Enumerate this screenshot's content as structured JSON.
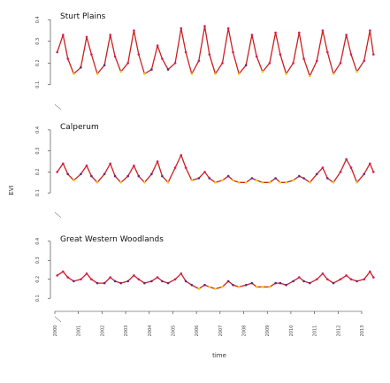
{
  "colors": {
    "line": "#cc1f1f",
    "points_primary": "#d81b60",
    "points_low": "#e6d400",
    "points_mid": "#5b2a86",
    "axis": "#333333"
  },
  "chart_data": {
    "type": "line",
    "ylabel": "EVI",
    "xlabel": "time",
    "x_ticks": [
      "2000",
      "2001",
      "2002",
      "2003",
      "2004",
      "2005",
      "2006",
      "2007",
      "2008",
      "2009",
      "2010",
      "2011",
      "2012",
      "2013"
    ],
    "xlim": [
      2000,
      2013.6
    ],
    "y_ticks": [
      "0.1",
      "0.2",
      "0.3",
      "0.4"
    ],
    "ylim": [
      0.05,
      0.45
    ],
    "panels": [
      {
        "name": "Sturt Plains",
        "x": [
          2000.1,
          2000.35,
          2000.55,
          2000.8,
          2001.1,
          2001.35,
          2001.55,
          2001.8,
          2002.1,
          2002.35,
          2002.55,
          2002.8,
          2003.1,
          2003.35,
          2003.55,
          2003.8,
          2004.1,
          2004.35,
          2004.55,
          2004.8,
          2005.1,
          2005.35,
          2005.55,
          2005.8,
          2006.1,
          2006.35,
          2006.55,
          2006.8,
          2007.1,
          2007.35,
          2007.55,
          2007.8,
          2008.1,
          2008.35,
          2008.55,
          2008.8,
          2009.1,
          2009.35,
          2009.55,
          2009.8,
          2010.1,
          2010.35,
          2010.55,
          2010.8,
          2011.1,
          2011.35,
          2011.55,
          2011.8,
          2012.1,
          2012.35,
          2012.55,
          2012.8,
          2013.1,
          2013.35,
          2013.5
        ],
        "y": [
          0.25,
          0.33,
          0.22,
          0.15,
          0.18,
          0.32,
          0.24,
          0.15,
          0.19,
          0.33,
          0.23,
          0.16,
          0.2,
          0.35,
          0.24,
          0.15,
          0.17,
          0.28,
          0.22,
          0.17,
          0.2,
          0.36,
          0.25,
          0.15,
          0.21,
          0.37,
          0.24,
          0.15,
          0.2,
          0.36,
          0.25,
          0.15,
          0.19,
          0.33,
          0.23,
          0.16,
          0.2,
          0.34,
          0.24,
          0.15,
          0.2,
          0.34,
          0.22,
          0.14,
          0.21,
          0.35,
          0.25,
          0.15,
          0.2,
          0.33,
          0.24,
          0.16,
          0.21,
          0.35,
          0.24
        ]
      },
      {
        "name": "Calperum",
        "x": [
          2000.1,
          2000.35,
          2000.55,
          2000.8,
          2001.1,
          2001.35,
          2001.55,
          2001.8,
          2002.1,
          2002.35,
          2002.55,
          2002.8,
          2003.1,
          2003.35,
          2003.55,
          2003.8,
          2004.1,
          2004.35,
          2004.55,
          2004.8,
          2005.1,
          2005.35,
          2005.55,
          2005.8,
          2006.1,
          2006.35,
          2006.55,
          2006.8,
          2007.1,
          2007.35,
          2007.55,
          2007.8,
          2008.1,
          2008.35,
          2008.55,
          2008.8,
          2009.1,
          2009.35,
          2009.55,
          2009.8,
          2010.1,
          2010.35,
          2010.55,
          2010.8,
          2011.1,
          2011.35,
          2011.55,
          2011.8,
          2012.1,
          2012.35,
          2012.55,
          2012.8,
          2013.1,
          2013.35,
          2013.5
        ],
        "y": [
          0.2,
          0.24,
          0.19,
          0.16,
          0.19,
          0.23,
          0.18,
          0.15,
          0.19,
          0.24,
          0.18,
          0.15,
          0.18,
          0.23,
          0.18,
          0.15,
          0.19,
          0.25,
          0.18,
          0.15,
          0.22,
          0.28,
          0.22,
          0.16,
          0.17,
          0.2,
          0.17,
          0.15,
          0.16,
          0.18,
          0.16,
          0.15,
          0.15,
          0.17,
          0.16,
          0.15,
          0.15,
          0.17,
          0.15,
          0.15,
          0.16,
          0.18,
          0.17,
          0.15,
          0.19,
          0.22,
          0.17,
          0.15,
          0.2,
          0.26,
          0.22,
          0.15,
          0.19,
          0.24,
          0.2
        ]
      },
      {
        "name": "Great Western Woodlands",
        "x": [
          2000.1,
          2000.35,
          2000.55,
          2000.8,
          2001.1,
          2001.35,
          2001.55,
          2001.8,
          2002.1,
          2002.35,
          2002.55,
          2002.8,
          2003.1,
          2003.35,
          2003.55,
          2003.8,
          2004.1,
          2004.35,
          2004.55,
          2004.8,
          2005.1,
          2005.35,
          2005.55,
          2005.8,
          2006.1,
          2006.35,
          2006.55,
          2006.8,
          2007.1,
          2007.35,
          2007.55,
          2007.8,
          2008.1,
          2008.35,
          2008.55,
          2008.8,
          2009.1,
          2009.35,
          2009.55,
          2009.8,
          2010.1,
          2010.35,
          2010.55,
          2010.8,
          2011.1,
          2011.35,
          2011.55,
          2011.8,
          2012.1,
          2012.35,
          2012.55,
          2012.8,
          2013.1,
          2013.35,
          2013.5
        ],
        "y": [
          0.22,
          0.24,
          0.21,
          0.19,
          0.2,
          0.23,
          0.2,
          0.18,
          0.18,
          0.21,
          0.19,
          0.18,
          0.19,
          0.22,
          0.2,
          0.18,
          0.19,
          0.21,
          0.19,
          0.18,
          0.2,
          0.23,
          0.19,
          0.17,
          0.15,
          0.17,
          0.16,
          0.15,
          0.16,
          0.19,
          0.17,
          0.16,
          0.17,
          0.18,
          0.16,
          0.16,
          0.16,
          0.18,
          0.18,
          0.17,
          0.19,
          0.21,
          0.19,
          0.18,
          0.2,
          0.23,
          0.2,
          0.18,
          0.2,
          0.22,
          0.2,
          0.19,
          0.2,
          0.24,
          0.21
        ]
      }
    ]
  }
}
